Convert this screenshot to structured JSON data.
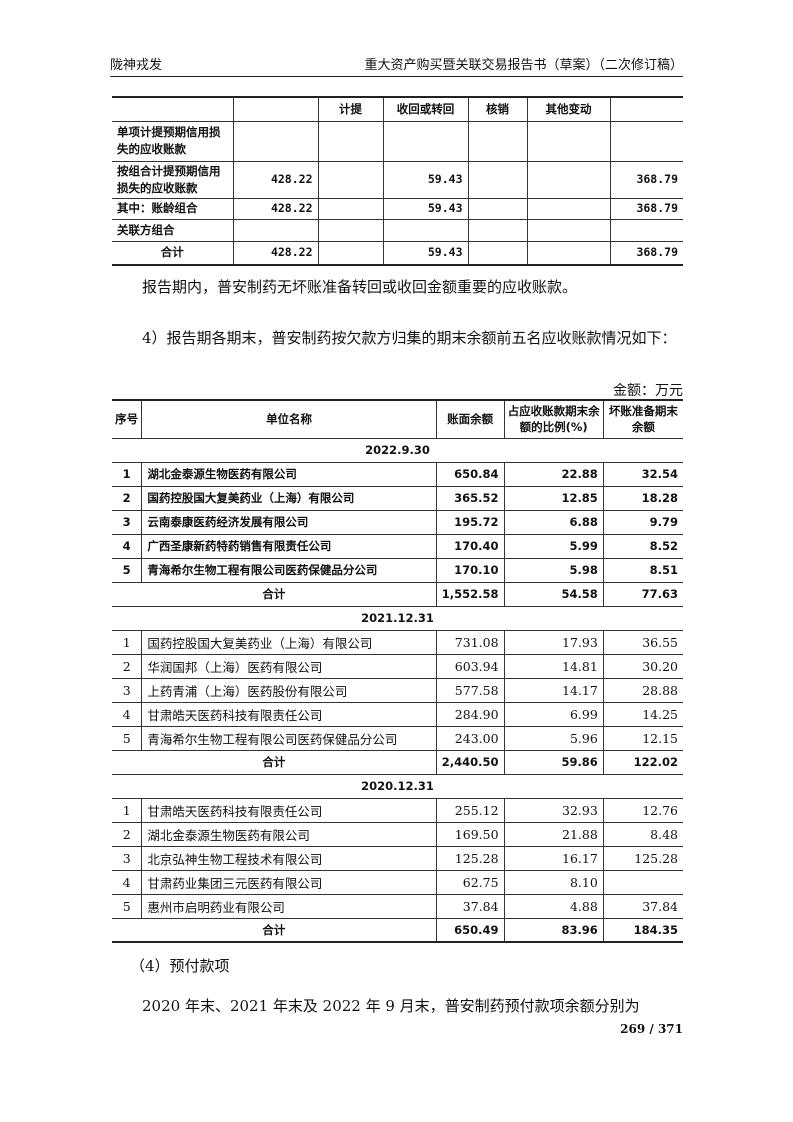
{
  "header": {
    "left": "陇神戎发",
    "right": "重大资产购买暨关联交易报告书（草案）（二次修订稿）"
  },
  "table1": {
    "header": [
      "",
      "",
      "计提",
      "收回或转回",
      "核销",
      "其他变动",
      ""
    ],
    "rows": [
      [
        "单项计提预期信用损失的应收账款",
        "",
        "",
        "",
        "",
        "",
        ""
      ],
      [
        "按组合计提预期信用损失的应收账款",
        "428.22",
        "",
        "59.43",
        "",
        "",
        "368.79"
      ],
      [
        "其中：账龄组合",
        "428.22",
        "",
        "59.43",
        "",
        "",
        "368.79"
      ],
      [
        "关联方组合",
        "",
        "",
        "",
        "",
        "",
        ""
      ],
      [
        "合计",
        "428.22",
        "",
        "59.43",
        "",
        "",
        "368.79"
      ]
    ]
  },
  "para1": "报告期内，普安制药无坏账准备转回或收回金额重要的应收账款。",
  "para2": "4）报告期各期末，普安制药按欠款方归集的期末余额前五名应收账款情况如下：",
  "unit": "金额：万元",
  "table2": {
    "header": [
      "序号",
      "单位名称",
      "账面余额",
      "占应收账款期末余额的比例(%)",
      "坏账准备期末余额"
    ],
    "sections": [
      {
        "period": "2022.9.30",
        "rows": [
          [
            "1",
            "湖北金泰源生物医药有限公司",
            "650.84",
            "22.88",
            "32.54"
          ],
          [
            "2",
            "国药控股国大复美药业（上海）有限公司",
            "365.52",
            "12.85",
            "18.28"
          ],
          [
            "3",
            "云南泰康医药经济发展有限公司",
            "195.72",
            "6.88",
            "9.79"
          ],
          [
            "4",
            "广西圣康新药特药销售有限责任公司",
            "170.40",
            "5.99",
            "8.52"
          ],
          [
            "5",
            "青海希尔生物工程有限公司医药保健品分公司",
            "170.10",
            "5.98",
            "8.51"
          ]
        ],
        "total": [
          "合计",
          "1,552.58",
          "54.58",
          "77.63"
        ]
      },
      {
        "period": "2021.12.31",
        "rows": [
          [
            "1",
            "国药控股国大复美药业（上海）有限公司",
            "731.08",
            "17.93",
            "36.55"
          ],
          [
            "2",
            "华润国邦（上海）医药有限公司",
            "603.94",
            "14.81",
            "30.20"
          ],
          [
            "3",
            "上药青浦（上海）医药股份有限公司",
            "577.58",
            "14.17",
            "28.88"
          ],
          [
            "4",
            "甘肃皓天医药科技有限责任公司",
            "284.90",
            "6.99",
            "14.25"
          ],
          [
            "5",
            "青海希尔生物工程有限公司医药保健品分公司",
            "243.00",
            "5.96",
            "12.15"
          ]
        ],
        "total": [
          "合计",
          "2,440.50",
          "59.86",
          "122.02"
        ]
      },
      {
        "period": "2020.12.31",
        "rows": [
          [
            "1",
            "甘肃皓天医药科技有限责任公司",
            "255.12",
            "32.93",
            "12.76"
          ],
          [
            "2",
            "湖北金泰源生物医药有限公司",
            "169.50",
            "21.88",
            "8.48"
          ],
          [
            "3",
            "北京弘神生物工程技术有限公司",
            "125.28",
            "16.17",
            "125.28"
          ],
          [
            "4",
            "甘肃药业集团三元医药有限公司",
            "62.75",
            "8.10",
            ""
          ],
          [
            "5",
            "惠州市启明药业有限公司",
            "37.84",
            "4.88",
            "37.84"
          ]
        ],
        "total": [
          "合计",
          "650.49",
          "83.96",
          "184.35"
        ]
      }
    ]
  },
  "para3": "（4）预付款项",
  "para4": "2020 年末、2021 年末及 2022 年 9 月末，普安制药预付款项余额分别为",
  "page": "269 / 371"
}
